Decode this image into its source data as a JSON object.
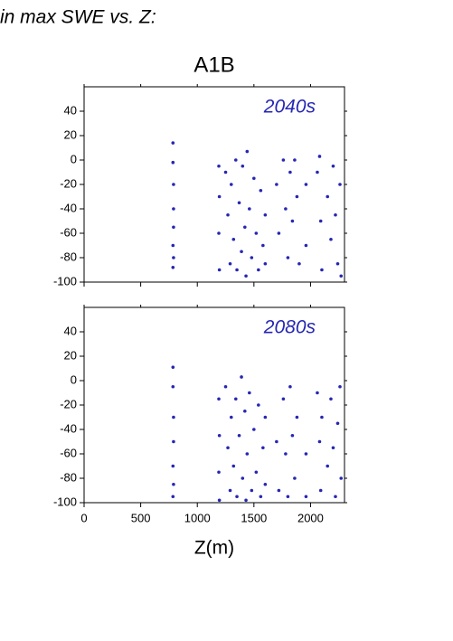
{
  "header": {
    "title": "in max SWE vs. Z:"
  },
  "chart_data": [
    {
      "type": "scatter",
      "title": "A1B",
      "annotation": "2040s",
      "color": "#2626b4",
      "xlim": [
        0,
        2300
      ],
      "ylim": [
        -100,
        60
      ],
      "yticks": [
        -100,
        -80,
        -60,
        -40,
        -20,
        0,
        20,
        40
      ],
      "x": [
        785,
        785,
        790,
        790,
        790,
        785,
        790,
        785,
        1190,
        1195,
        1190,
        1195,
        1250,
        1270,
        1290,
        1300,
        1320,
        1340,
        1350,
        1370,
        1390,
        1400,
        1420,
        1430,
        1440,
        1460,
        1480,
        1500,
        1520,
        1540,
        1560,
        1580,
        1600,
        1600,
        1700,
        1720,
        1760,
        1780,
        1800,
        1820,
        1840,
        1860,
        1880,
        1900,
        1960,
        1960,
        2060,
        2080,
        2090,
        2100,
        2150,
        2180,
        2200,
        2220,
        2240,
        2260,
        2270
      ],
      "values": [
        14,
        -2,
        -20,
        -40,
        -55,
        -70,
        -80,
        -88,
        -5,
        -30,
        -60,
        -90,
        -10,
        -45,
        -85,
        -20,
        -65,
        0,
        -90,
        -35,
        -75,
        -5,
        -55,
        -95,
        7,
        -40,
        -80,
        -15,
        -60,
        -90,
        -25,
        -70,
        -45,
        -85,
        -20,
        -60,
        0,
        -40,
        -80,
        -10,
        -50,
        0,
        -30,
        -85,
        -20,
        -70,
        -10,
        3,
        -50,
        -90,
        -30,
        -65,
        -5,
        -45,
        -85,
        -20,
        -95
      ]
    },
    {
      "type": "scatter",
      "annotation": "2080s",
      "xlabel": "Z(m)",
      "color": "#2626b4",
      "xlim": [
        0,
        2300
      ],
      "ylim": [
        -100,
        60
      ],
      "yticks": [
        -100,
        -80,
        -60,
        -40,
        -20,
        0,
        20,
        40
      ],
      "xticks": [
        0,
        500,
        1000,
        1500,
        2000
      ],
      "x": [
        785,
        785,
        790,
        790,
        785,
        790,
        785,
        1190,
        1195,
        1190,
        1195,
        1250,
        1270,
        1290,
        1300,
        1320,
        1340,
        1350,
        1370,
        1390,
        1400,
        1420,
        1430,
        1440,
        1460,
        1480,
        1500,
        1520,
        1540,
        1560,
        1580,
        1600,
        1600,
        1700,
        1720,
        1760,
        1780,
        1800,
        1820,
        1840,
        1860,
        1880,
        1960,
        1960,
        2060,
        2080,
        2090,
        2100,
        2150,
        2180,
        2200,
        2220,
        2240,
        2260,
        2270
      ],
      "values": [
        11,
        -5,
        -30,
        -50,
        -70,
        -85,
        -95,
        -15,
        -45,
        -75,
        -98,
        -5,
        -55,
        -90,
        -30,
        -70,
        -15,
        -95,
        -45,
        3,
        -80,
        -25,
        -98,
        -60,
        -10,
        -90,
        -40,
        -75,
        -20,
        -95,
        -55,
        -30,
        -85,
        -50,
        -90,
        -15,
        -60,
        -95,
        -5,
        -45,
        -80,
        -30,
        -60,
        -95,
        -10,
        -50,
        -90,
        -30,
        -70,
        -15,
        -55,
        -95,
        -35,
        -5,
        -80
      ]
    }
  ]
}
